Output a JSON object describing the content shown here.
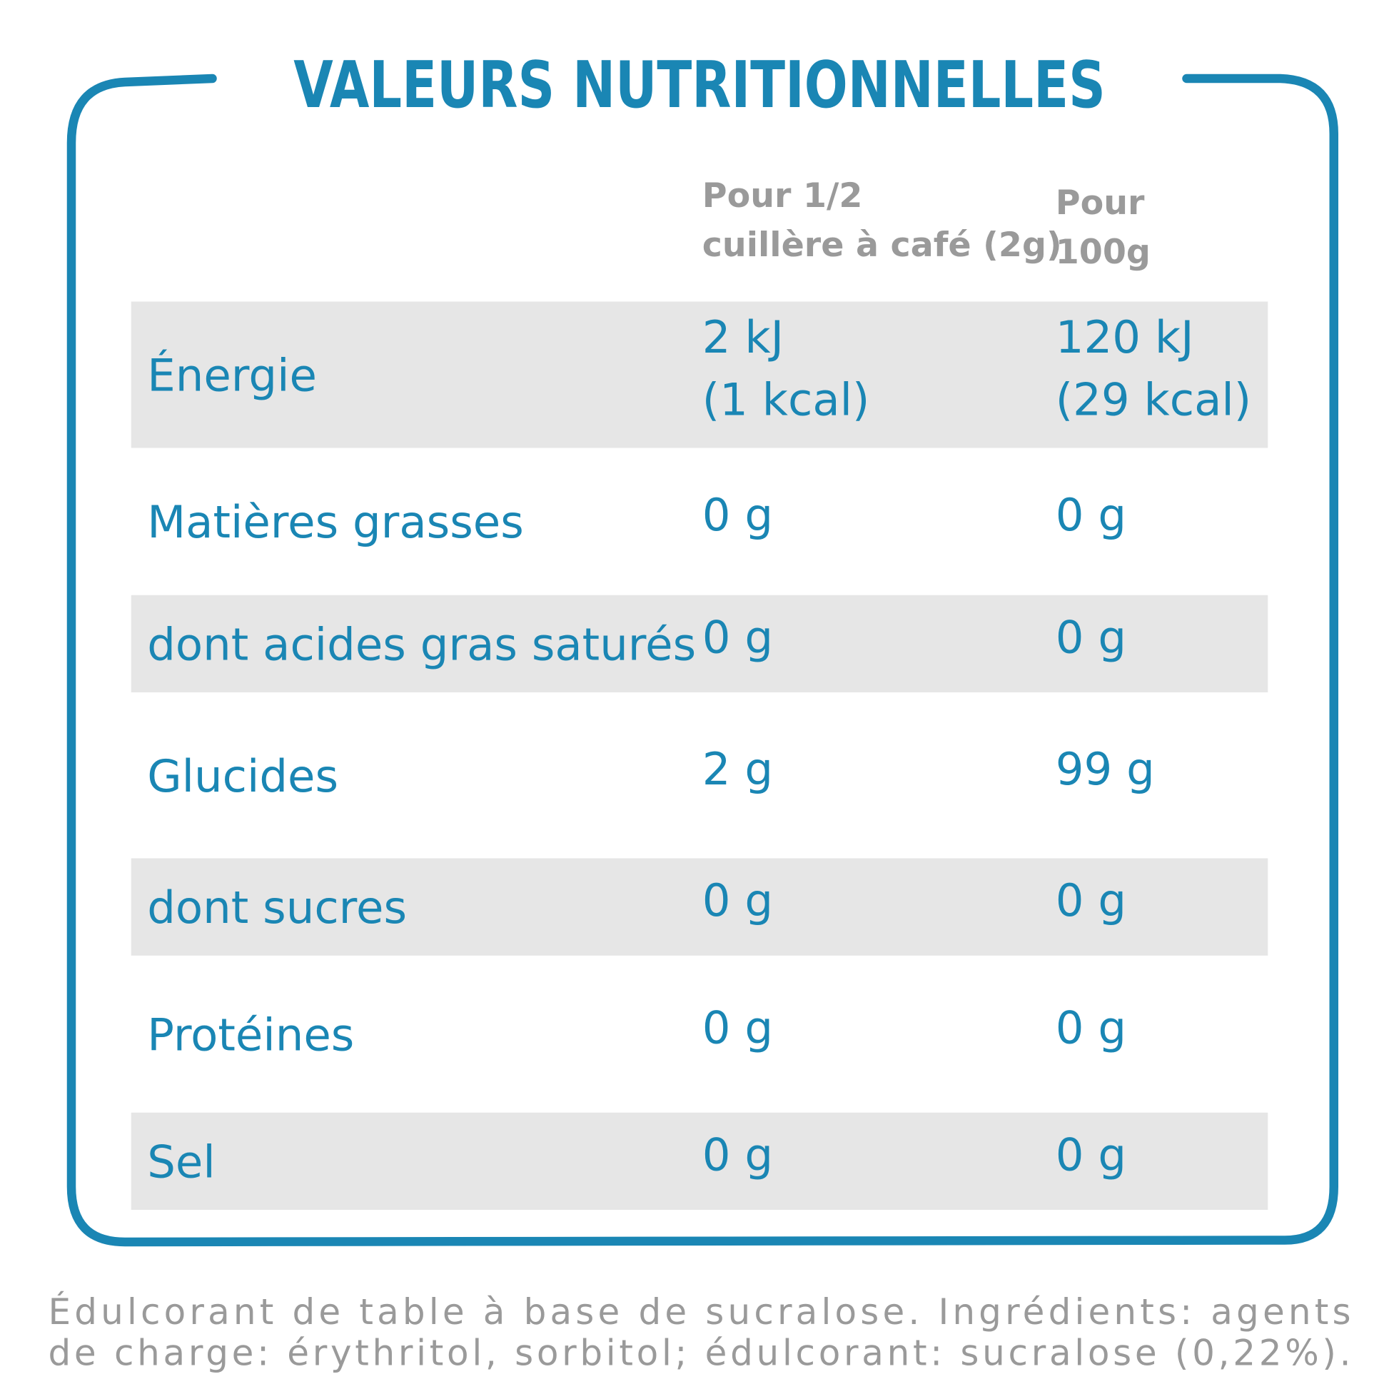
{
  "title": "VALEURS NUTRITIONNELLES",
  "table": {
    "headers": [
      [
        "Pour 1/2",
        "cuillère à café (2g)"
      ],
      [
        "Pour",
        "100g"
      ]
    ],
    "rows": [
      {
        "label": "Énergie",
        "cells": [
          [
            "2 kJ",
            "(1 kcal)"
          ],
          [
            "120 kJ",
            "(29 kcal)"
          ]
        ]
      },
      {
        "label": "Matières grasses",
        "cells": [
          [
            "0 g"
          ],
          [
            "0 g"
          ]
        ]
      },
      {
        "label": "dont acides gras saturés",
        "cells": [
          [
            "0 g"
          ],
          [
            "0 g"
          ]
        ]
      },
      {
        "label": "Glucides",
        "cells": [
          [
            "2 g"
          ],
          [
            "99 g"
          ]
        ]
      },
      {
        "label": "dont sucres",
        "cells": [
          [
            "0 g"
          ],
          [
            "0 g"
          ]
        ]
      },
      {
        "label": "Protéines",
        "cells": [
          [
            "0 g"
          ],
          [
            "0 g"
          ]
        ]
      },
      {
        "label": "Sel",
        "cells": [
          [
            "0 g"
          ],
          [
            "0 g"
          ]
        ]
      }
    ]
  },
  "footnote": [
    "Édulcorant de table à base de sucralose. Ingrédients: agents",
    "de charge: érythritol, sorbitol; édulcorant: sucralose (0,22%)."
  ]
}
